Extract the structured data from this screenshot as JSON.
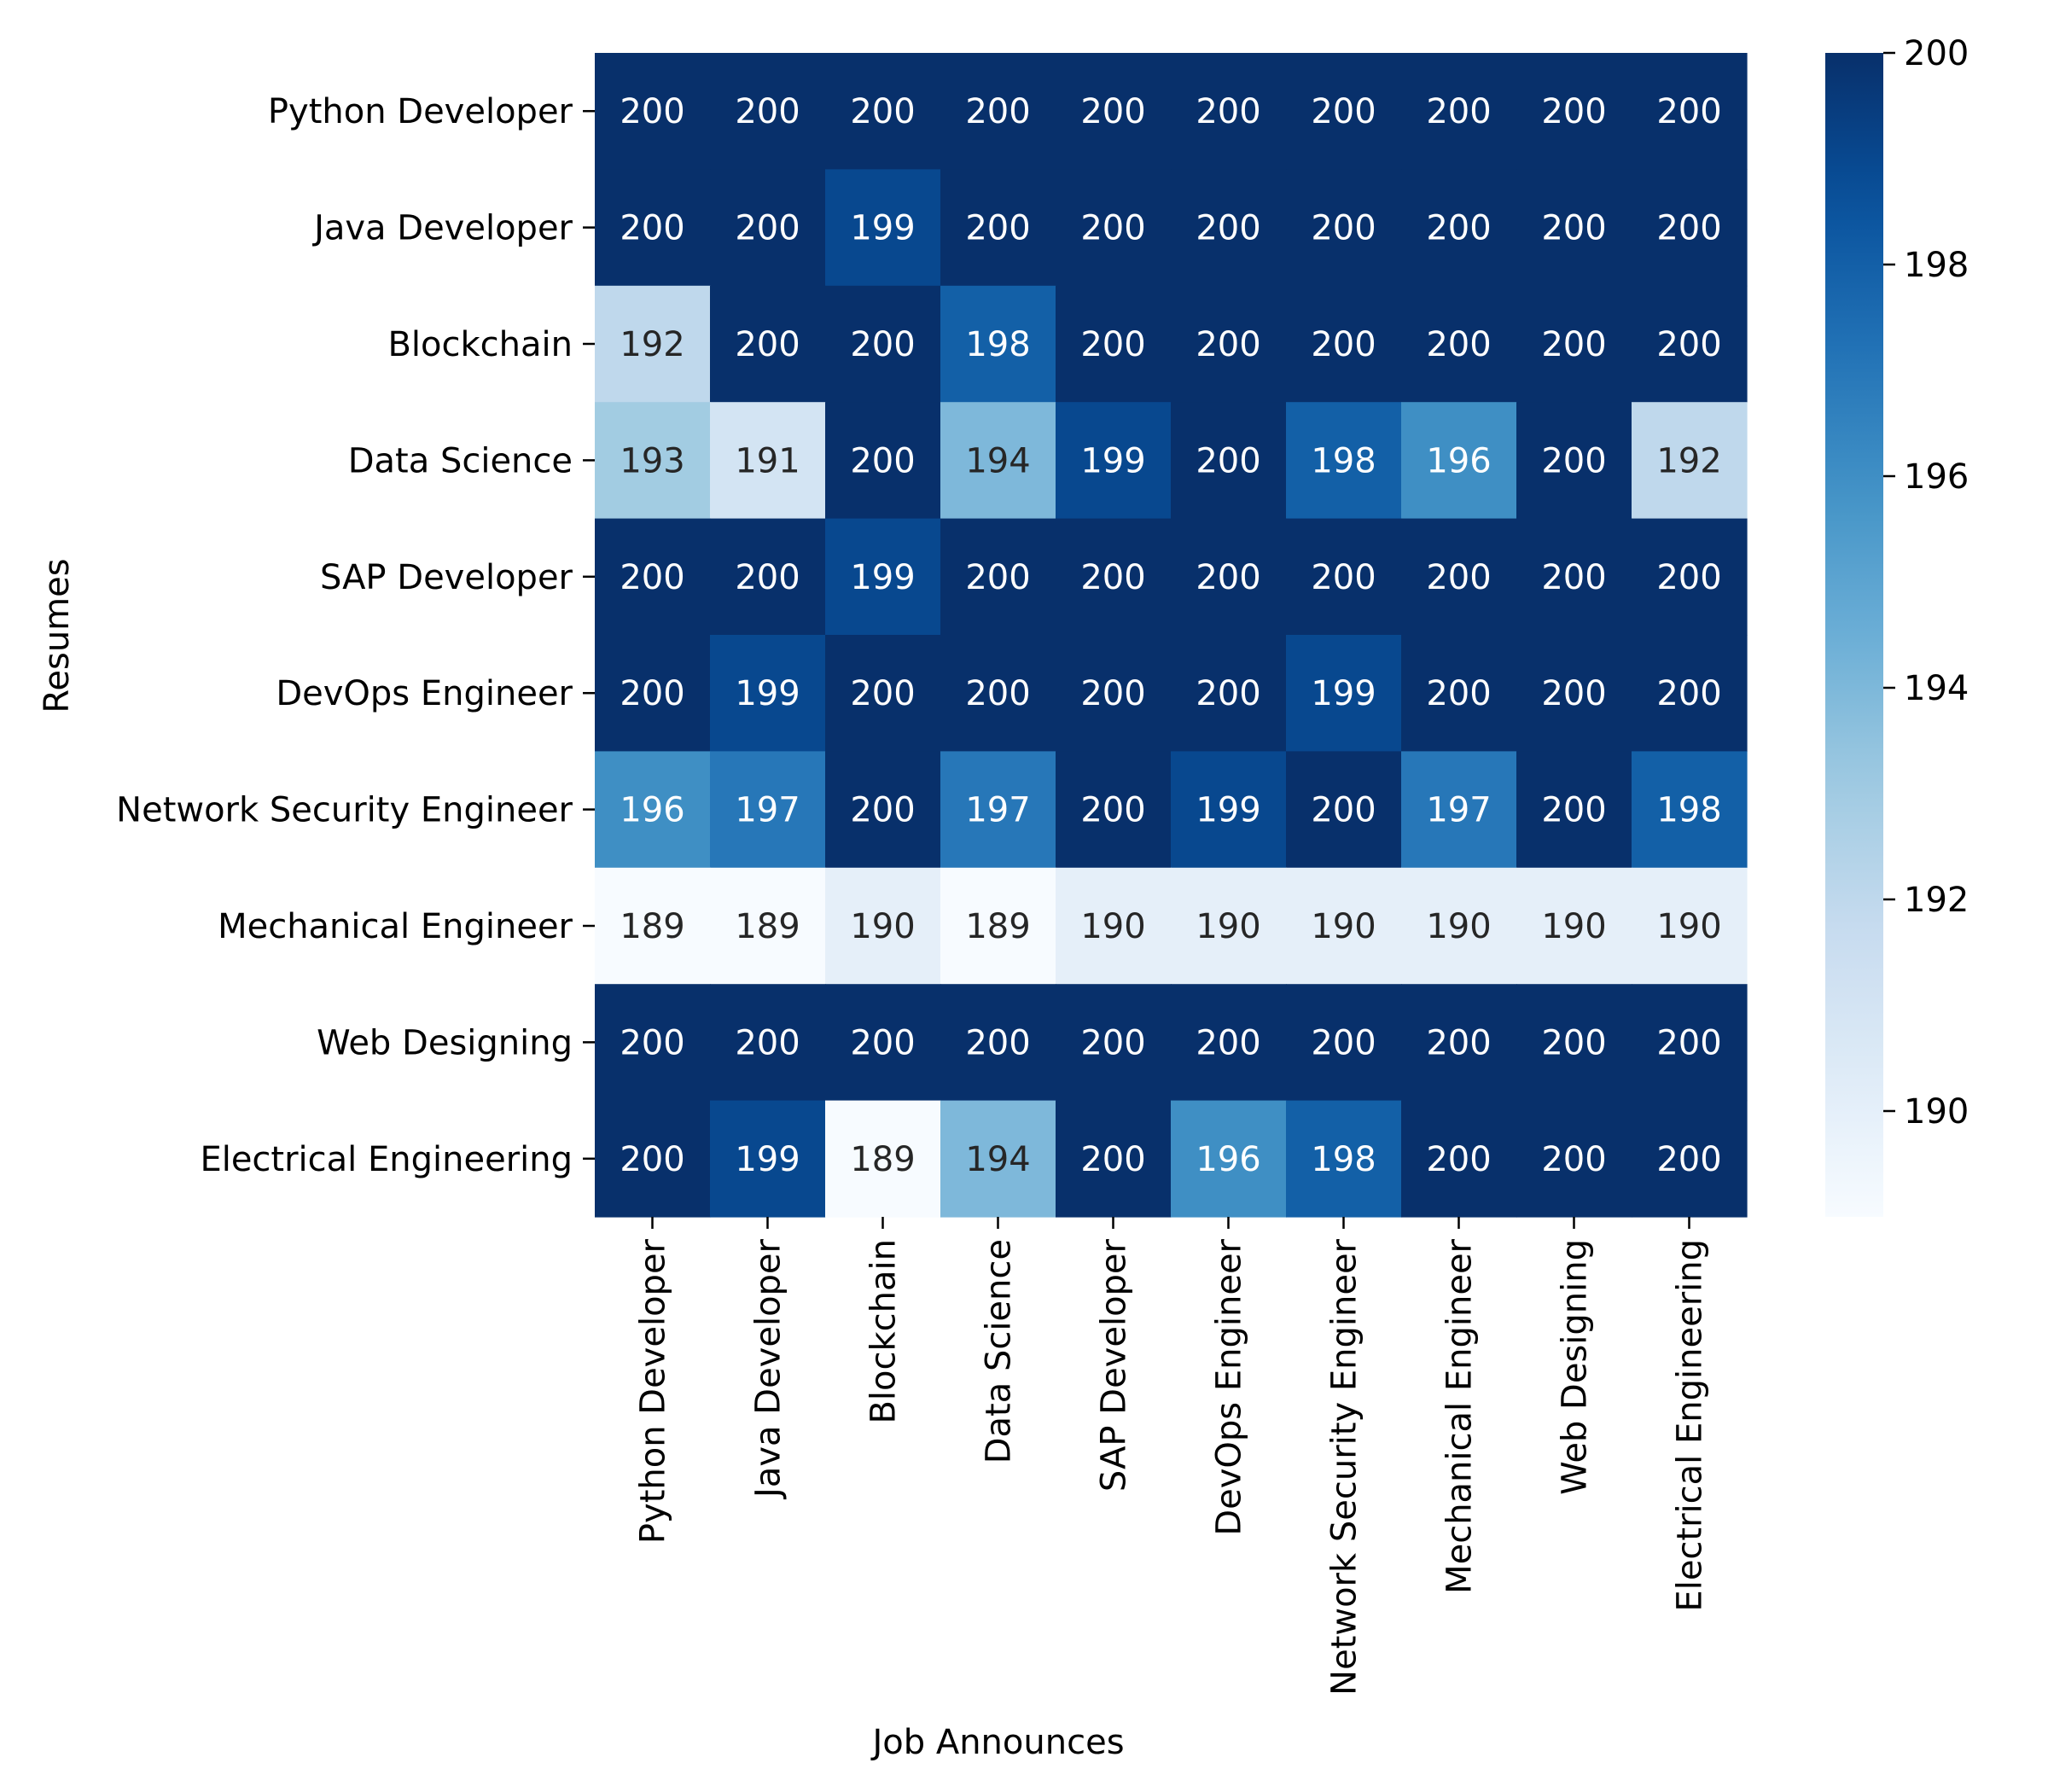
{
  "chart_data": {
    "type": "heatmap",
    "title": "",
    "xlabel": "Job Announces",
    "ylabel": "Resumes",
    "x_categories": [
      "Python Developer",
      "Java Developer",
      "Blockchain",
      "Data Science",
      "SAP Developer",
      "DevOps Engineer",
      "Network Security Engineer",
      "Mechanical Engineer",
      "Web Designing",
      "Electrical Engineering"
    ],
    "y_categories": [
      "Python Developer",
      "Java Developer",
      "Blockchain",
      "Data Science",
      "SAP Developer",
      "DevOps Engineer",
      "Network Security Engineer",
      "Mechanical Engineer",
      "Web Designing",
      "Electrical Engineering"
    ],
    "values": [
      [
        200,
        200,
        200,
        200,
        200,
        200,
        200,
        200,
        200,
        200
      ],
      [
        200,
        200,
        199,
        200,
        200,
        200,
        200,
        200,
        200,
        200
      ],
      [
        192,
        200,
        200,
        198,
        200,
        200,
        200,
        200,
        200,
        200
      ],
      [
        193,
        191,
        200,
        194,
        199,
        200,
        198,
        196,
        200,
        192
      ],
      [
        200,
        200,
        199,
        200,
        200,
        200,
        200,
        200,
        200,
        200
      ],
      [
        200,
        199,
        200,
        200,
        200,
        200,
        199,
        200,
        200,
        200
      ],
      [
        196,
        197,
        200,
        197,
        200,
        199,
        200,
        197,
        200,
        198
      ],
      [
        189,
        189,
        190,
        189,
        190,
        190,
        190,
        190,
        190,
        190
      ],
      [
        200,
        200,
        200,
        200,
        200,
        200,
        200,
        200,
        200,
        200
      ],
      [
        200,
        199,
        189,
        194,
        200,
        196,
        198,
        200,
        200,
        200
      ]
    ],
    "colormap": "Blues",
    "color_range": [
      189,
      200
    ],
    "colorbar_ticks": [
      190,
      192,
      194,
      196,
      198,
      200
    ],
    "annotated": true,
    "grid": false
  }
}
